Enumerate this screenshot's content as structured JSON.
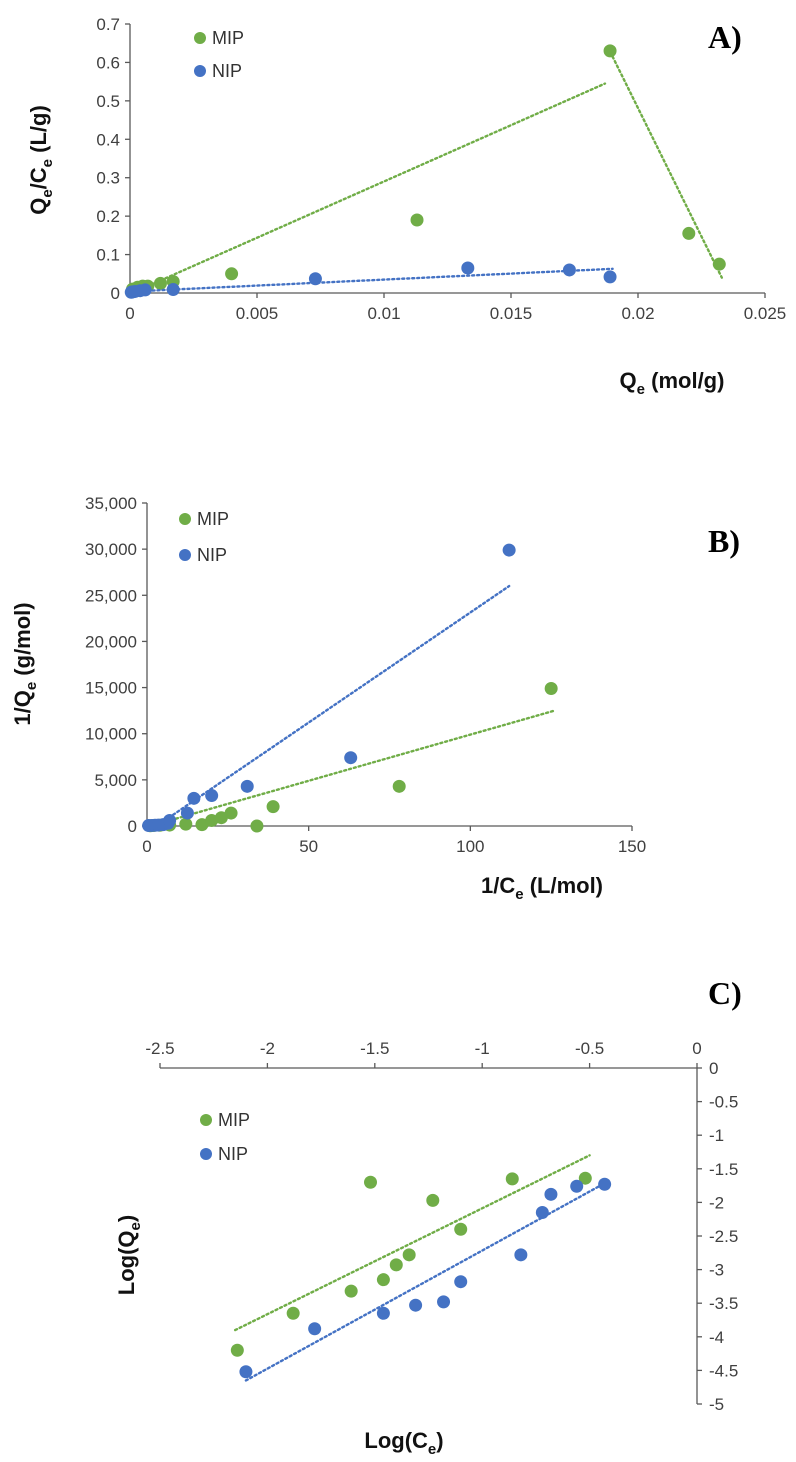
{
  "colors": {
    "mip": "#70ad47",
    "nip": "#4472c4",
    "axis": "#595959"
  },
  "chart_data": [
    {
      "id": "A",
      "type": "scatter",
      "panel_label": "A)",
      "xlabel_main": "Q",
      "xlabel_sub": "e",
      "xlabel_rest": " (mol/g)",
      "ylabel_parts": [
        "Q",
        "e",
        "/C",
        "e",
        " (L/g)"
      ],
      "xlim": [
        0,
        0.025
      ],
      "ylim": [
        0,
        0.7
      ],
      "x_ticks": [
        "0",
        "0.005",
        "0.01",
        "0.015",
        "0.02",
        "0.025"
      ],
      "x_tick_values": [
        0,
        0.005,
        0.01,
        0.015,
        0.02,
        0.025
      ],
      "y_ticks": [
        "0",
        "0.1",
        "0.2",
        "0.3",
        "0.4",
        "0.5",
        "0.6",
        "0.7"
      ],
      "y_tick_values": [
        0,
        0.1,
        0.2,
        0.3,
        0.4,
        0.5,
        0.6,
        0.7
      ],
      "legend_position": "top-left",
      "series": [
        {
          "name": "MIP",
          "color": "#70ad47",
          "x": [
            0.0001,
            0.0003,
            0.0005,
            0.0007,
            0.0012,
            0.0017,
            0.004,
            0.0113,
            0.0189,
            0.022,
            0.0232
          ],
          "y": [
            0.01,
            0.015,
            0.018,
            0.018,
            0.025,
            0.03,
            0.05,
            0.19,
            0.63,
            0.155,
            0.075
          ],
          "trendlines": [
            [
              [
                0.0005,
                0.012
              ],
              [
                0.0187,
                0.545
              ]
            ],
            [
              [
                0.019,
                0.615
              ],
              [
                0.0233,
                0.04
              ]
            ]
          ]
        },
        {
          "name": "NIP",
          "color": "#4472c4",
          "x": [
            5e-05,
            0.0001,
            0.0002,
            0.0004,
            0.0006,
            0.0017,
            0.0073,
            0.0133,
            0.0173,
            0.0189
          ],
          "y": [
            0.002,
            0.003,
            0.004,
            0.006,
            0.008,
            0.009,
            0.037,
            0.065,
            0.06,
            0.042
          ],
          "trendlines": [
            [
              [
                0.0001,
                0.004
              ],
              [
                0.019,
                0.063
              ]
            ]
          ]
        }
      ]
    },
    {
      "id": "B",
      "type": "scatter",
      "panel_label": "B)",
      "xlabel_main": "1/C",
      "xlabel_sub": "e",
      "xlabel_rest": " (L/mol)",
      "ylabel_parts": [
        "1/Q",
        "e",
        " (g/mol)"
      ],
      "xlim": [
        0,
        150
      ],
      "ylim": [
        0,
        35000
      ],
      "x_ticks": [
        "0",
        "50",
        "100",
        "150"
      ],
      "x_tick_values": [
        0,
        50,
        100,
        150
      ],
      "y_ticks": [
        "0",
        "5,000",
        "10,000",
        "15,000",
        "20,000",
        "25,000",
        "30,000",
        "35,000"
      ],
      "y_tick_values": [
        0,
        5000,
        10000,
        15000,
        20000,
        25000,
        30000,
        35000
      ],
      "legend_position": "top-left",
      "series": [
        {
          "name": "MIP",
          "color": "#70ad47",
          "x": [
            1,
            2,
            4,
            7,
            12,
            17,
            20,
            23,
            26,
            34,
            39,
            78,
            125
          ],
          "y": [
            30,
            50,
            80,
            100,
            200,
            150,
            600,
            900,
            1400,
            0,
            2100,
            4300,
            14900
          ],
          "trendlines": [
            [
              [
                3,
                200
              ],
              [
                126,
                12500
              ]
            ]
          ]
        },
        {
          "name": "NIP",
          "color": "#4472c4",
          "x": [
            0.5,
            1.5,
            2.5,
            3.5,
            5,
            6.5,
            7,
            12.5,
            14.5,
            20,
            31,
            63,
            112
          ],
          "y": [
            50,
            60,
            80,
            100,
            150,
            300,
            600,
            1400,
            3000,
            3300,
            4300,
            7400,
            29900
          ],
          "trendlines": [
            [
              [
                3,
                0
              ],
              [
                112,
                26000
              ]
            ]
          ]
        }
      ]
    },
    {
      "id": "C",
      "type": "scatter",
      "panel_label": "C)",
      "xlabel_main": "Log(C",
      "xlabel_sub": "e",
      "xlabel_rest": ")",
      "ylabel_parts": [
        "Log(Q",
        "e",
        ")"
      ],
      "xlim": [
        -2.5,
        0
      ],
      "ylim": [
        -5,
        0
      ],
      "x_ticks": [
        "-2.5",
        "-2",
        "-1.5",
        "-1",
        "-0.5",
        "0"
      ],
      "x_tick_values": [
        -2.5,
        -2,
        -1.5,
        -1,
        -0.5,
        0
      ],
      "y_ticks": [
        "0",
        "-0.5",
        "-1",
        "-1.5",
        "-2",
        "-2.5",
        "-3",
        "-3.5",
        "-4",
        "-4.5",
        "-5"
      ],
      "y_tick_values": [
        0,
        -0.5,
        -1,
        -1.5,
        -2,
        -2.5,
        -3,
        -3.5,
        -4,
        -4.5,
        -5
      ],
      "legend_position": "left",
      "series": [
        {
          "name": "MIP",
          "color": "#70ad47",
          "x": [
            -2.14,
            -1.88,
            -1.61,
            -1.46,
            -1.4,
            -1.34,
            -1.52,
            -1.23,
            -1.1,
            -0.86,
            -0.52
          ],
          "y": [
            -4.2,
            -3.65,
            -3.32,
            -3.15,
            -2.93,
            -2.78,
            -1.7,
            -1.97,
            -2.4,
            -1.65,
            -1.64
          ],
          "trendlines": [
            [
              [
                -2.15,
                -3.9
              ],
              [
                -0.5,
                -1.3
              ]
            ]
          ]
        },
        {
          "name": "NIP",
          "color": "#4472c4",
          "x": [
            -2.1,
            -1.78,
            -1.46,
            -1.31,
            -1.18,
            -1.1,
            -0.82,
            -0.72,
            -0.68,
            -0.56,
            -0.43
          ],
          "y": [
            -4.52,
            -3.88,
            -3.65,
            -3.53,
            -3.48,
            -3.18,
            -2.78,
            -2.15,
            -1.88,
            -1.76,
            -1.73
          ],
          "trendlines": [
            [
              [
                -2.1,
                -4.65
              ],
              [
                -0.45,
                -1.75
              ]
            ]
          ]
        }
      ]
    }
  ]
}
